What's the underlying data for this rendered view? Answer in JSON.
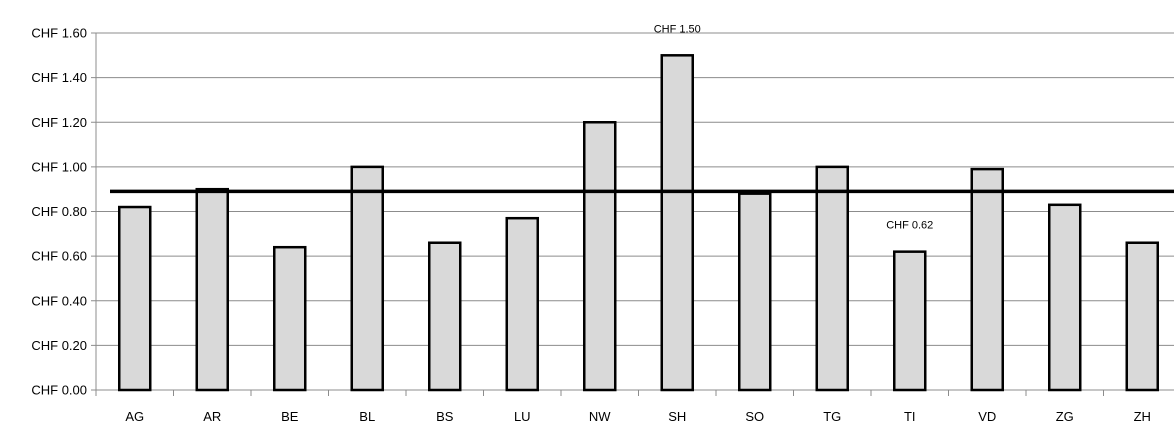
{
  "chart_data": {
    "type": "bar",
    "categories": [
      "AG",
      "AR",
      "BE",
      "BL",
      "BS",
      "LU",
      "NW",
      "SH",
      "SO",
      "TG",
      "TI",
      "VD",
      "ZG",
      "ZH"
    ],
    "values": [
      0.82,
      0.9,
      0.64,
      1.0,
      0.66,
      0.77,
      1.2,
      1.5,
      0.88,
      1.0,
      0.62,
      0.99,
      0.83,
      0.66
    ],
    "reference_line": 0.89,
    "ylim": [
      0,
      1.6
    ],
    "yticks": [
      0,
      0.2,
      0.4,
      0.6,
      0.8,
      1.0,
      1.2,
      1.4,
      1.6
    ],
    "ytick_labels": [
      "CHF 0.00",
      "CHF 0.20",
      "CHF 0.40",
      "CHF 0.60",
      "CHF 0.80",
      "CHF 1.00",
      "CHF 1.20",
      "CHF 1.40",
      "CHF 1.60"
    ],
    "data_labels": [
      {
        "category": "SH",
        "text": "CHF 1.50"
      },
      {
        "category": "TI",
        "text": "CHF 0.62"
      }
    ],
    "grid": "horizontal",
    "legend": "none",
    "colors": {
      "bar_fill": "#d9d9d9",
      "bar_stroke": "#000000",
      "grid": "#8c8c8c",
      "reference_line": "#000000"
    }
  }
}
